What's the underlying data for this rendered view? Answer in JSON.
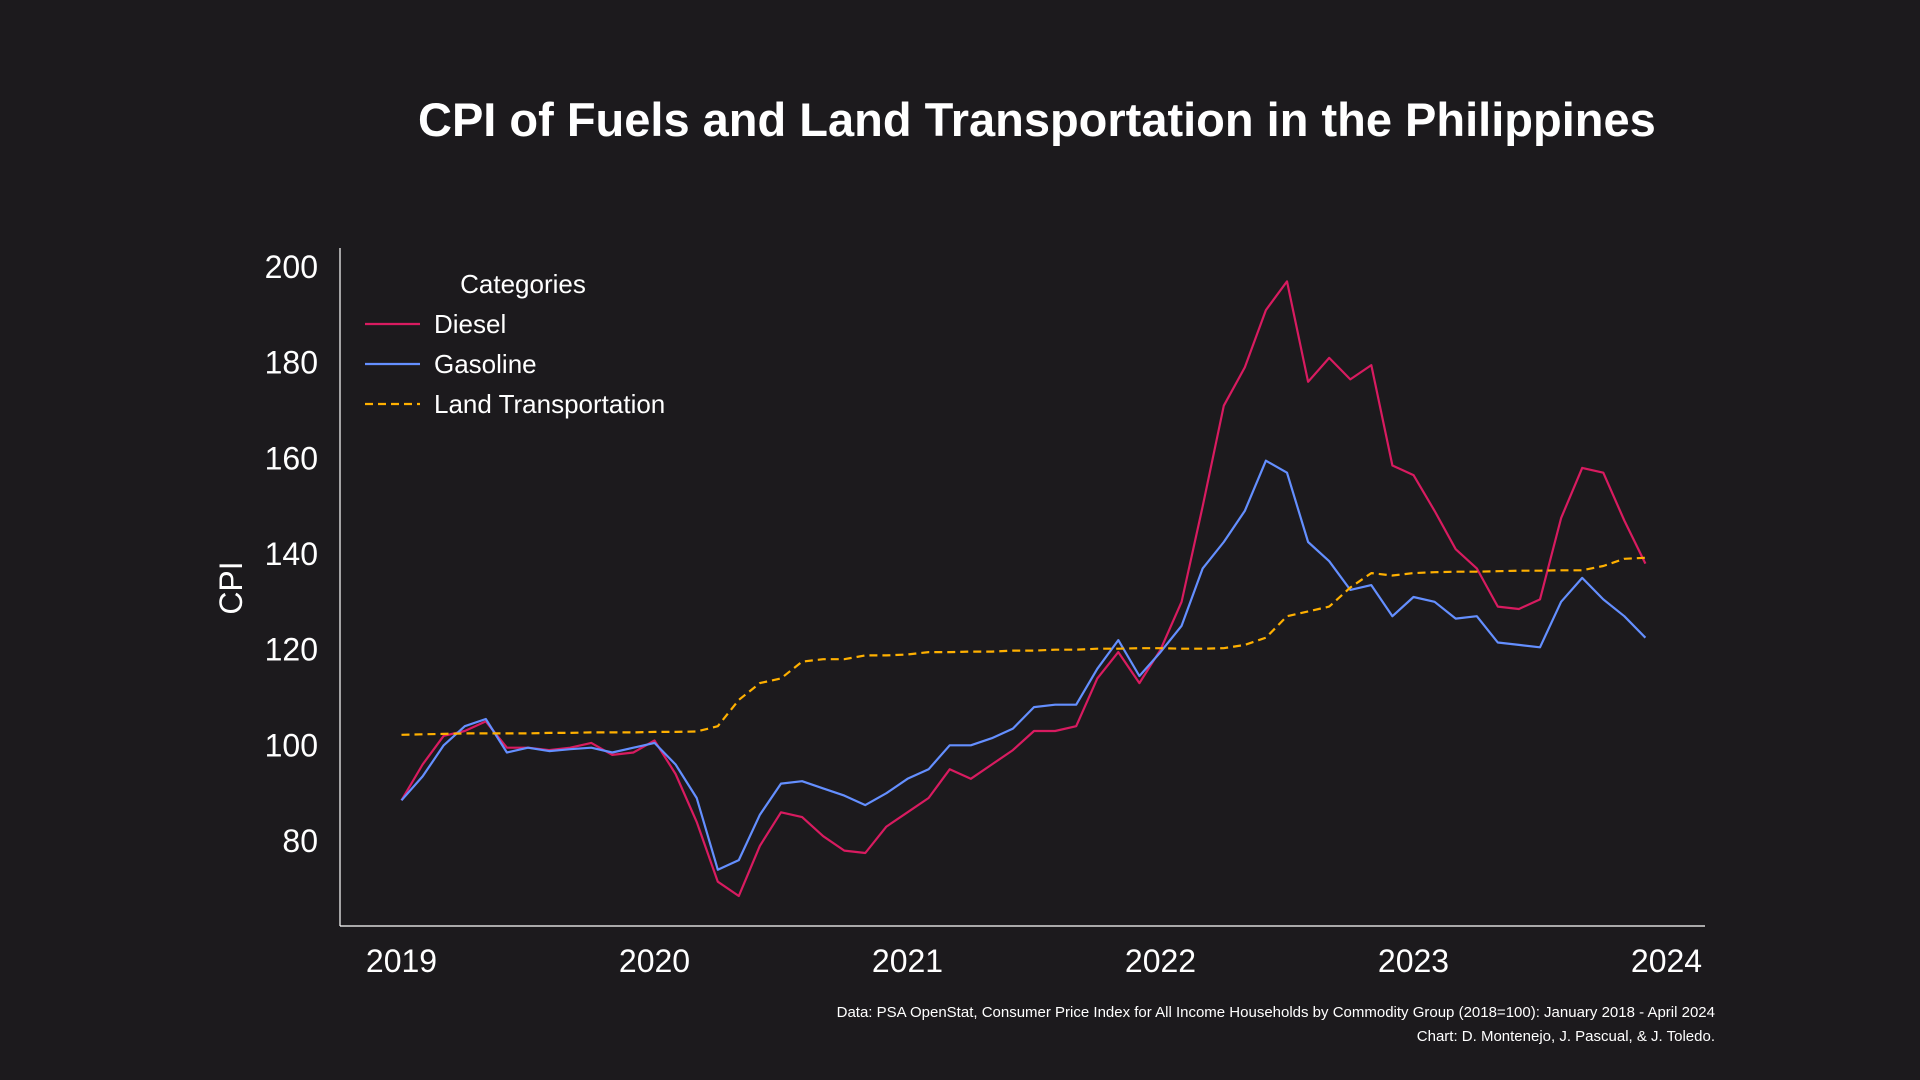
{
  "chart_data": {
    "type": "line",
    "title": "CPI of Fuels and Land Transportation in the Philippines",
    "xlabel": "",
    "ylabel": "CPI",
    "x_ticks": [
      "2019",
      "2020",
      "2021",
      "2022",
      "2023",
      "2024"
    ],
    "y_ticks": [
      80,
      100,
      120,
      140,
      160,
      180,
      200
    ],
    "ylim": [
      62,
      204
    ],
    "xlim": [
      "2018-10",
      "2024-03"
    ],
    "grid": false,
    "legend": {
      "title": "Categories",
      "placement": "top-left"
    },
    "x": [
      "2019-01",
      "2019-02",
      "2019-03",
      "2019-04",
      "2019-05",
      "2019-06",
      "2019-07",
      "2019-08",
      "2019-09",
      "2019-10",
      "2019-11",
      "2019-12",
      "2020-01",
      "2020-02",
      "2020-03",
      "2020-04",
      "2020-05",
      "2020-06",
      "2020-07",
      "2020-08",
      "2020-09",
      "2020-10",
      "2020-11",
      "2020-12",
      "2021-01",
      "2021-02",
      "2021-03",
      "2021-04",
      "2021-05",
      "2021-06",
      "2021-07",
      "2021-08",
      "2021-09",
      "2021-10",
      "2021-11",
      "2021-12",
      "2022-01",
      "2022-02",
      "2022-03",
      "2022-04",
      "2022-05",
      "2022-06",
      "2022-07",
      "2022-08",
      "2022-09",
      "2022-10",
      "2022-11",
      "2022-12",
      "2023-01",
      "2023-02",
      "2023-03",
      "2023-04",
      "2023-05",
      "2023-06",
      "2023-07",
      "2023-08",
      "2023-09",
      "2023-10",
      "2023-11",
      "2023-12"
    ],
    "series": [
      {
        "name": "Diesel",
        "color": "#d81b60",
        "dash": "solid",
        "values": [
          88.5,
          96,
          102,
          103,
          105,
          99.5,
          99.5,
          99,
          99.5,
          100.5,
          98,
          98.5,
          101,
          94,
          84,
          71.5,
          68.5,
          79,
          86,
          85,
          81,
          78,
          77.5,
          83,
          86,
          89,
          95,
          93,
          96,
          99,
          103,
          103,
          104,
          114,
          119.5,
          113,
          120,
          130,
          150,
          171,
          179,
          191,
          197,
          176,
          181,
          176.5,
          179.5,
          158.5,
          156.5,
          149,
          141,
          137,
          129,
          128.5,
          130.5,
          147.5,
          158,
          157,
          147,
          138
        ]
      },
      {
        "name": "Gasoline",
        "color": "#648fff",
        "dash": "solid",
        "values": [
          88.5,
          93.5,
          100,
          104,
          105.5,
          98.5,
          99.5,
          98.8,
          99.2,
          99.5,
          98.5,
          99.5,
          100.5,
          96,
          89,
          74,
          76,
          85.5,
          92,
          92.5,
          91,
          89.5,
          87.5,
          90,
          93,
          95,
          100,
          100,
          101.5,
          103.5,
          108,
          108.5,
          108.5,
          116,
          122,
          114.5,
          119.5,
          125,
          137,
          142.5,
          149,
          159.5,
          157,
          142.5,
          138.5,
          132.5,
          133.5,
          127,
          131,
          130,
          126.5,
          127,
          121.5,
          121,
          120.5,
          130,
          135,
          130.5,
          127,
          122.5
        ]
      },
      {
        "name": "Land Transportation",
        "color": "#ffb000",
        "dash": "dashed",
        "values": [
          102.2,
          102.3,
          102.4,
          102.5,
          102.5,
          102.5,
          102.5,
          102.6,
          102.6,
          102.7,
          102.7,
          102.7,
          102.8,
          102.8,
          102.9,
          104,
          109.5,
          113,
          114,
          117.5,
          118,
          118,
          118.8,
          118.8,
          119,
          119.5,
          119.5,
          119.6,
          119.6,
          119.8,
          119.8,
          120,
          120,
          120.2,
          120.2,
          120.3,
          120.3,
          120.2,
          120.2,
          120.3,
          121,
          122.5,
          127,
          128,
          129,
          133,
          136,
          135.5,
          136,
          136.2,
          136.3,
          136.3,
          136.4,
          136.5,
          136.5,
          136.6,
          136.6,
          137.5,
          139,
          139.2
        ]
      }
    ]
  },
  "footer": {
    "data_source": "Data:  PSA OpenStat, Consumer Price Index for All Income Households by Commodity Group (2018=100): January 2018 - April 2024",
    "credit": "Chart:  D. Montenejo, J. Pascual, & J. Toledo."
  },
  "colors": {
    "background": "#1c1a1d",
    "axis": "#ffffff"
  }
}
